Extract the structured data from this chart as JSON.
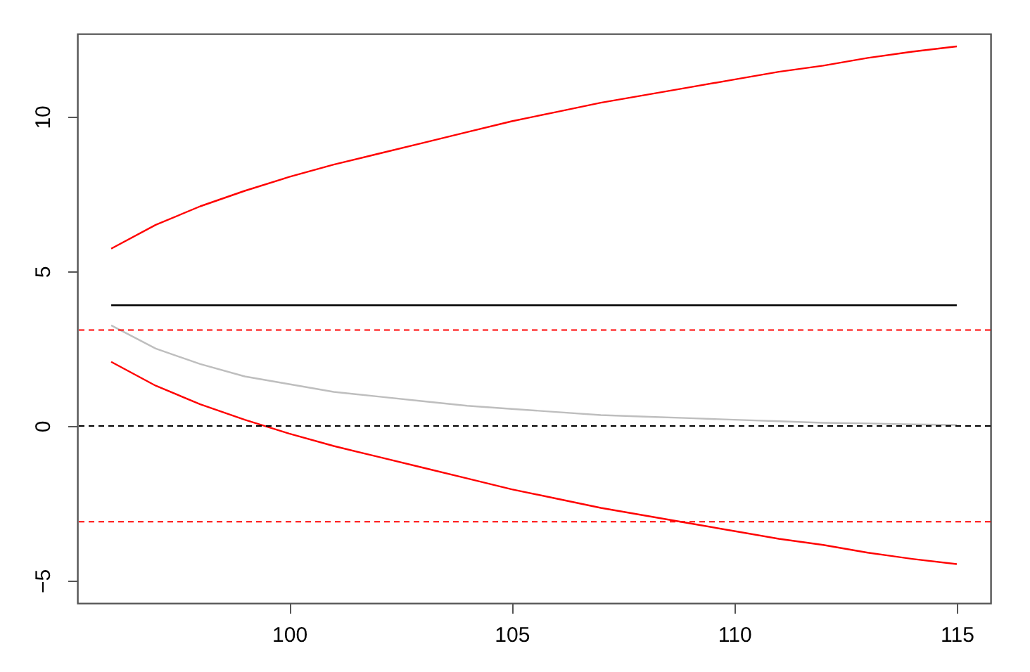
{
  "chart_data": {
    "type": "line",
    "x": [
      96,
      97,
      98,
      99,
      100,
      101,
      102,
      103,
      104,
      105,
      106,
      107,
      108,
      109,
      110,
      111,
      112,
      113,
      114,
      115
    ],
    "series": [
      {
        "color": "#ff0000",
        "values": [
          5.73,
          6.5,
          7.1,
          7.6,
          8.05,
          8.45,
          8.8,
          9.15,
          9.5,
          9.85,
          10.15,
          10.45,
          10.7,
          10.95,
          11.2,
          11.45,
          11.65,
          11.9,
          12.1,
          12.27
        ]
      },
      {
        "color": "#ff0000",
        "values": [
          2.07,
          1.3,
          0.7,
          0.2,
          -0.25,
          -0.65,
          -1.0,
          -1.35,
          -1.7,
          -2.05,
          -2.35,
          -2.65,
          -2.9,
          -3.15,
          -3.4,
          -3.65,
          -3.85,
          -4.1,
          -4.3,
          -4.47
        ]
      },
      {
        "color": "#bebebe",
        "values": [
          3.25,
          2.5,
          2.0,
          1.6,
          1.35,
          1.1,
          0.95,
          0.8,
          0.65,
          0.55,
          0.45,
          0.35,
          0.3,
          0.25,
          0.2,
          0.15,
          0.1,
          0.08,
          0.05,
          0.03
        ]
      },
      {
        "color": "#000000",
        "values": [
          3.9,
          3.9,
          3.9,
          3.9,
          3.9,
          3.9,
          3.9,
          3.9,
          3.9,
          3.9,
          3.9,
          3.9,
          3.9,
          3.9,
          3.9,
          3.9,
          3.9,
          3.9,
          3.9,
          3.9
        ]
      }
    ],
    "ref_lines": [
      {
        "axis": "y",
        "value": 3.1,
        "color": "#ff0000",
        "line_style": "dashed"
      },
      {
        "axis": "y",
        "value": -3.1,
        "color": "#ff0000",
        "line_style": "dashed"
      },
      {
        "axis": "y",
        "value": 0,
        "color": "#000000",
        "line_style": "dashed"
      }
    ],
    "xlim": [
      95.24,
      115.76
    ],
    "ylim": [
      -5.73,
      12.68
    ],
    "xticks": [
      100,
      105,
      110,
      115
    ],
    "yticks": [
      -5,
      0,
      5,
      10
    ],
    "grid": false
  }
}
